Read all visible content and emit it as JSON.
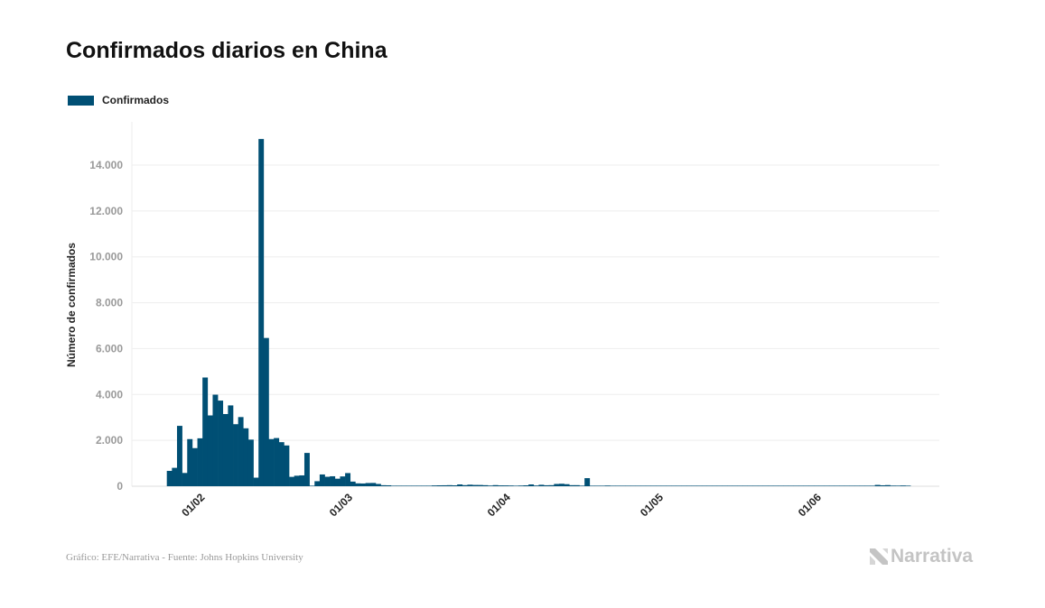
{
  "title": "Confirmados diarios en China",
  "footer": "Gráfico: EFE/Narrativa - Fuente: Johns Hopkins University",
  "logo_text": "Narrativa",
  "chart_data": {
    "type": "bar",
    "title": "Confirmados diarios en China",
    "xlabel": "",
    "ylabel": "Número de confirmados",
    "ylim": [
      0,
      15500
    ],
    "yticks": [
      0,
      2000,
      4000,
      6000,
      8000,
      10000,
      12000,
      14000
    ],
    "ytick_labels": [
      "0",
      "2.000",
      "4.000",
      "6.000",
      "8.000",
      "10.000",
      "12.000",
      "14.000"
    ],
    "xtick_labels": [
      "01/02",
      "01/03",
      "01/04",
      "01/05",
      "01/06"
    ],
    "grid": true,
    "legend_placement": "top-left",
    "color": "#004f74",
    "series": [
      {
        "name": "Confirmados",
        "x": [
          "26/01",
          "27/01",
          "28/01",
          "29/01",
          "30/01",
          "31/01",
          "01/02",
          "02/02",
          "03/02",
          "04/02",
          "05/02",
          "06/02",
          "07/02",
          "08/02",
          "09/02",
          "10/02",
          "11/02",
          "12/02",
          "13/02",
          "14/02",
          "15/02",
          "16/02",
          "17/02",
          "18/02",
          "19/02",
          "20/02",
          "21/02",
          "22/02",
          "23/02",
          "24/02",
          "25/02",
          "26/02",
          "27/02",
          "28/02",
          "29/02",
          "01/03",
          "02/03",
          "03/03",
          "04/03",
          "05/03",
          "06/03",
          "07/03",
          "08/03",
          "09/03",
          "10/03",
          "11/03",
          "12/03",
          "13/03",
          "14/03",
          "15/03",
          "16/03",
          "17/03",
          "18/03",
          "19/03",
          "20/03",
          "21/03",
          "22/03",
          "23/03",
          "24/03",
          "25/03",
          "26/03",
          "27/03",
          "28/03",
          "29/03",
          "30/03",
          "31/03",
          "01/04",
          "02/04",
          "03/04",
          "04/04",
          "05/04",
          "06/04",
          "07/04",
          "08/04",
          "09/04",
          "10/04",
          "11/04",
          "12/04",
          "13/04",
          "14/04",
          "15/04",
          "16/04",
          "17/04",
          "18/04",
          "19/04",
          "20/04",
          "21/04",
          "22/04",
          "23/04",
          "24/04",
          "25/04",
          "26/04",
          "27/04",
          "28/04",
          "29/04",
          "30/04",
          "01/05",
          "02/05",
          "03/05",
          "04/05",
          "05/05",
          "06/05",
          "07/05",
          "08/05",
          "09/05",
          "10/05",
          "11/05",
          "12/05",
          "13/05",
          "14/05",
          "15/05",
          "16/05",
          "17/05",
          "18/05",
          "19/05",
          "20/05",
          "21/05",
          "22/05",
          "23/05",
          "24/05",
          "25/05",
          "26/05",
          "27/05",
          "28/05",
          "29/05",
          "30/05",
          "31/05",
          "01/06",
          "02/06",
          "03/06",
          "04/06",
          "05/06",
          "06/06",
          "07/06",
          "08/06",
          "09/06",
          "10/06",
          "11/06",
          "12/06",
          "13/06",
          "14/06",
          "15/06",
          "16/06",
          "17/06",
          "18/06",
          "19/06"
        ],
        "values": [
          669,
          802,
          2632,
          578,
          2054,
          1661,
          2089,
          4739,
          3086,
          3991,
          3733,
          3147,
          3523,
          2704,
          3015,
          2525,
          2032,
          373,
          15136,
          6463,
          2055,
          2100,
          1921,
          1777,
          408,
          458,
          473,
          1451,
          21,
          219,
          513,
          412,
          434,
          328,
          427,
          573,
          202,
          125,
          119,
          139,
          143,
          99,
          44,
          40,
          19,
          24,
          15,
          11,
          20,
          16,
          21,
          13,
          34,
          39,
          41,
          46,
          39,
          78,
          47,
          67,
          55,
          54,
          45,
          31,
          48,
          36,
          35,
          31,
          19,
          30,
          39,
          78,
          32,
          63,
          42,
          46,
          99,
          108,
          89,
          46,
          46,
          26,
          352,
          16,
          12,
          11,
          30,
          10,
          10,
          11,
          12,
          6,
          3,
          22,
          4,
          3,
          12,
          2,
          1,
          2,
          1,
          2,
          16,
          1,
          1,
          17,
          5,
          7,
          6,
          4,
          7,
          5,
          7,
          3,
          6,
          5,
          4,
          2,
          3,
          11,
          7,
          1,
          1,
          3,
          2,
          4,
          14,
          16,
          3,
          4,
          6,
          5,
          3,
          6,
          3,
          3,
          2,
          11,
          18,
          57,
          40,
          49,
          28,
          26,
          32,
          25
        ]
      }
    ]
  }
}
